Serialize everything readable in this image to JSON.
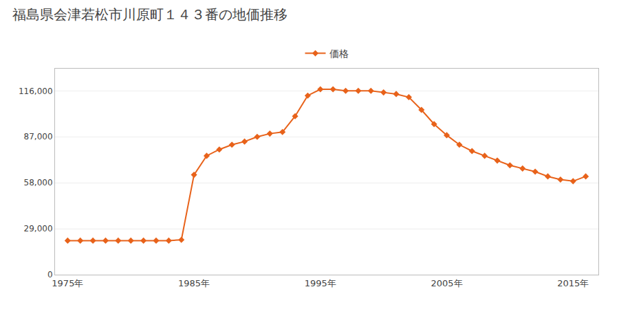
{
  "chart_data": {
    "type": "line",
    "title": "福島県会津若松市川原町１４３番の地価推移",
    "x": [
      1975,
      1976,
      1977,
      1978,
      1979,
      1980,
      1981,
      1982,
      1983,
      1984,
      1985,
      1986,
      1987,
      1988,
      1989,
      1990,
      1991,
      1992,
      1993,
      1994,
      1995,
      1996,
      1997,
      1998,
      1999,
      2000,
      2001,
      2002,
      2003,
      2004,
      2005,
      2006,
      2007,
      2008,
      2009,
      2010,
      2011,
      2012,
      2013,
      2014,
      2015,
      2016
    ],
    "series": [
      {
        "name": "価格",
        "color": "#e8621a",
        "marker": "diamond",
        "values": [
          21500,
          21500,
          21500,
          21500,
          21500,
          21500,
          21500,
          21500,
          21500,
          22000,
          63000,
          75000,
          79000,
          82000,
          84000,
          87000,
          89000,
          90000,
          100000,
          113000,
          117000,
          117000,
          116000,
          116000,
          116000,
          115000,
          114000,
          112000,
          104000,
          95000,
          88000,
          82000,
          78000,
          75000,
          72000,
          69000,
          67000,
          65000,
          62000,
          60000,
          59000,
          62000
        ]
      }
    ],
    "xlim": [
      1974,
      2017
    ],
    "xticks": [
      {
        "value": 1975,
        "label": "1975年"
      },
      {
        "value": 1985,
        "label": "1985年"
      },
      {
        "value": 1995,
        "label": "1995年"
      },
      {
        "value": 2005,
        "label": "2005年"
      },
      {
        "value": 2015,
        "label": "2015年"
      }
    ],
    "ylim": [
      0,
      130000
    ],
    "yticks": [
      0,
      {
        "value": 29000,
        "label": "29,000"
      },
      {
        "value": 58000,
        "label": "58,000"
      },
      {
        "value": 87000,
        "label": "87,000"
      },
      {
        "value": 116000,
        "label": "116,000"
      }
    ],
    "grid": true,
    "legend": "top"
  }
}
